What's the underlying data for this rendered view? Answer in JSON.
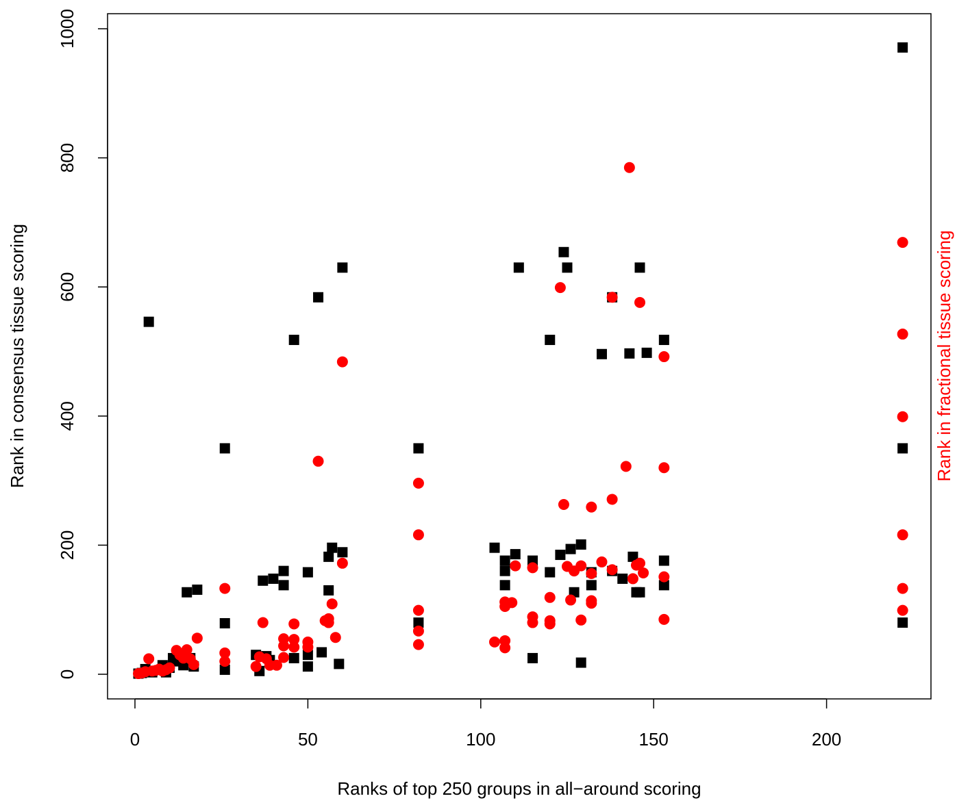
{
  "chart_data": {
    "type": "scatter",
    "title": "",
    "xlabel": "Ranks of top 250 groups in all−around scoring",
    "ylabel": "Rank in consensus tissue scoring",
    "ylabel_right": "Rank in fractional tissue scoring",
    "xlim": [
      -7,
      232
    ],
    "ylim": [
      -38,
      1040
    ],
    "xticks": [
      0,
      50,
      100,
      150,
      200
    ],
    "yticks": [
      0,
      200,
      400,
      600,
      800,
      1000
    ],
    "grid": false,
    "legend": "none",
    "series": [
      {
        "marker": "square",
        "color": "#000000",
        "points": [
          [
            1,
            1
          ],
          [
            2,
            2
          ],
          [
            3,
            8
          ],
          [
            4,
            546
          ],
          [
            5,
            3
          ],
          [
            8,
            14
          ],
          [
            9,
            3
          ],
          [
            10,
            10
          ],
          [
            11,
            25
          ],
          [
            12,
            20
          ],
          [
            14,
            14
          ],
          [
            15,
            127
          ],
          [
            16,
            25
          ],
          [
            17,
            12
          ],
          [
            18,
            131
          ],
          [
            26,
            350
          ],
          [
            26,
            79
          ],
          [
            26,
            7
          ],
          [
            35,
            30
          ],
          [
            36,
            5
          ],
          [
            37,
            145
          ],
          [
            38,
            28
          ],
          [
            39,
            22
          ],
          [
            40,
            148
          ],
          [
            43,
            160
          ],
          [
            43,
            138
          ],
          [
            46,
            518
          ],
          [
            46,
            25
          ],
          [
            50,
            158
          ],
          [
            50,
            30
          ],
          [
            50,
            12
          ],
          [
            53,
            584
          ],
          [
            54,
            34
          ],
          [
            56,
            182
          ],
          [
            56,
            130
          ],
          [
            57,
            196
          ],
          [
            59,
            16
          ],
          [
            60,
            630
          ],
          [
            60,
            189
          ],
          [
            82,
            350
          ],
          [
            82,
            80
          ],
          [
            104,
            196
          ],
          [
            107,
            176
          ],
          [
            107,
            160
          ],
          [
            107,
            138
          ],
          [
            110,
            186
          ],
          [
            111,
            630
          ],
          [
            115,
            176
          ],
          [
            115,
            25
          ],
          [
            120,
            518
          ],
          [
            120,
            158
          ],
          [
            123,
            185
          ],
          [
            124,
            654
          ],
          [
            125,
            630
          ],
          [
            126,
            194
          ],
          [
            127,
            127
          ],
          [
            129,
            201
          ],
          [
            129,
            18
          ],
          [
            132,
            158
          ],
          [
            132,
            138
          ],
          [
            135,
            496
          ],
          [
            138,
            584
          ],
          [
            138,
            160
          ],
          [
            141,
            148
          ],
          [
            143,
            497
          ],
          [
            144,
            182
          ],
          [
            145,
            127
          ],
          [
            146,
            630
          ],
          [
            146,
            127
          ],
          [
            148,
            498
          ],
          [
            153,
            518
          ],
          [
            153,
            176
          ],
          [
            153,
            138
          ],
          [
            222,
            971
          ],
          [
            222,
            350
          ],
          [
            222,
            80
          ]
        ]
      },
      {
        "marker": "circle",
        "color": "#ff0000",
        "points": [
          [
            1,
            1
          ],
          [
            2,
            2
          ],
          [
            3,
            4
          ],
          [
            4,
            24
          ],
          [
            5,
            5
          ],
          [
            6,
            6
          ],
          [
            7,
            8
          ],
          [
            8,
            5
          ],
          [
            9,
            7
          ],
          [
            10,
            10
          ],
          [
            12,
            37
          ],
          [
            13,
            30
          ],
          [
            14,
            25
          ],
          [
            15,
            38
          ],
          [
            16,
            24
          ],
          [
            17,
            15
          ],
          [
            18,
            56
          ],
          [
            26,
            133
          ],
          [
            26,
            33
          ],
          [
            26,
            20
          ],
          [
            35,
            12
          ],
          [
            36,
            27
          ],
          [
            37,
            80
          ],
          [
            38,
            24
          ],
          [
            39,
            14
          ],
          [
            41,
            14
          ],
          [
            43,
            55
          ],
          [
            43,
            44
          ],
          [
            43,
            26
          ],
          [
            46,
            78
          ],
          [
            46,
            54
          ],
          [
            46,
            42
          ],
          [
            50,
            50
          ],
          [
            50,
            42
          ],
          [
            53,
            330
          ],
          [
            55,
            83
          ],
          [
            56,
            86
          ],
          [
            56,
            80
          ],
          [
            57,
            109
          ],
          [
            58,
            57
          ],
          [
            60,
            484
          ],
          [
            60,
            172
          ],
          [
            82,
            296
          ],
          [
            82,
            216
          ],
          [
            82,
            99
          ],
          [
            82,
            67
          ],
          [
            82,
            46
          ],
          [
            104,
            50
          ],
          [
            107,
            112
          ],
          [
            107,
            105
          ],
          [
            107,
            52
          ],
          [
            107,
            41
          ],
          [
            109,
            111
          ],
          [
            110,
            168
          ],
          [
            115,
            89
          ],
          [
            115,
            80
          ],
          [
            115,
            165
          ],
          [
            120,
            119
          ],
          [
            120,
            83
          ],
          [
            120,
            78
          ],
          [
            123,
            599
          ],
          [
            124,
            263
          ],
          [
            125,
            167
          ],
          [
            126,
            115
          ],
          [
            127,
            160
          ],
          [
            129,
            168
          ],
          [
            129,
            84
          ],
          [
            132,
            156
          ],
          [
            132,
            114
          ],
          [
            132,
            110
          ],
          [
            132,
            259
          ],
          [
            135,
            174
          ],
          [
            138,
            271
          ],
          [
            138,
            584
          ],
          [
            138,
            162
          ],
          [
            142,
            322
          ],
          [
            143,
            785
          ],
          [
            144,
            148
          ],
          [
            145,
            169
          ],
          [
            146,
            576
          ],
          [
            146,
            172
          ],
          [
            147,
            157
          ],
          [
            153,
            492
          ],
          [
            153,
            320
          ],
          [
            153,
            151
          ],
          [
            153,
            85
          ],
          [
            222,
            669
          ],
          [
            222,
            527
          ],
          [
            222,
            399
          ],
          [
            222,
            216
          ],
          [
            222,
            133
          ],
          [
            222,
            99
          ]
        ]
      }
    ]
  },
  "colors": {
    "series_black": "#000000",
    "series_red": "#ff0000",
    "right_axis_label": "#ff0000"
  }
}
